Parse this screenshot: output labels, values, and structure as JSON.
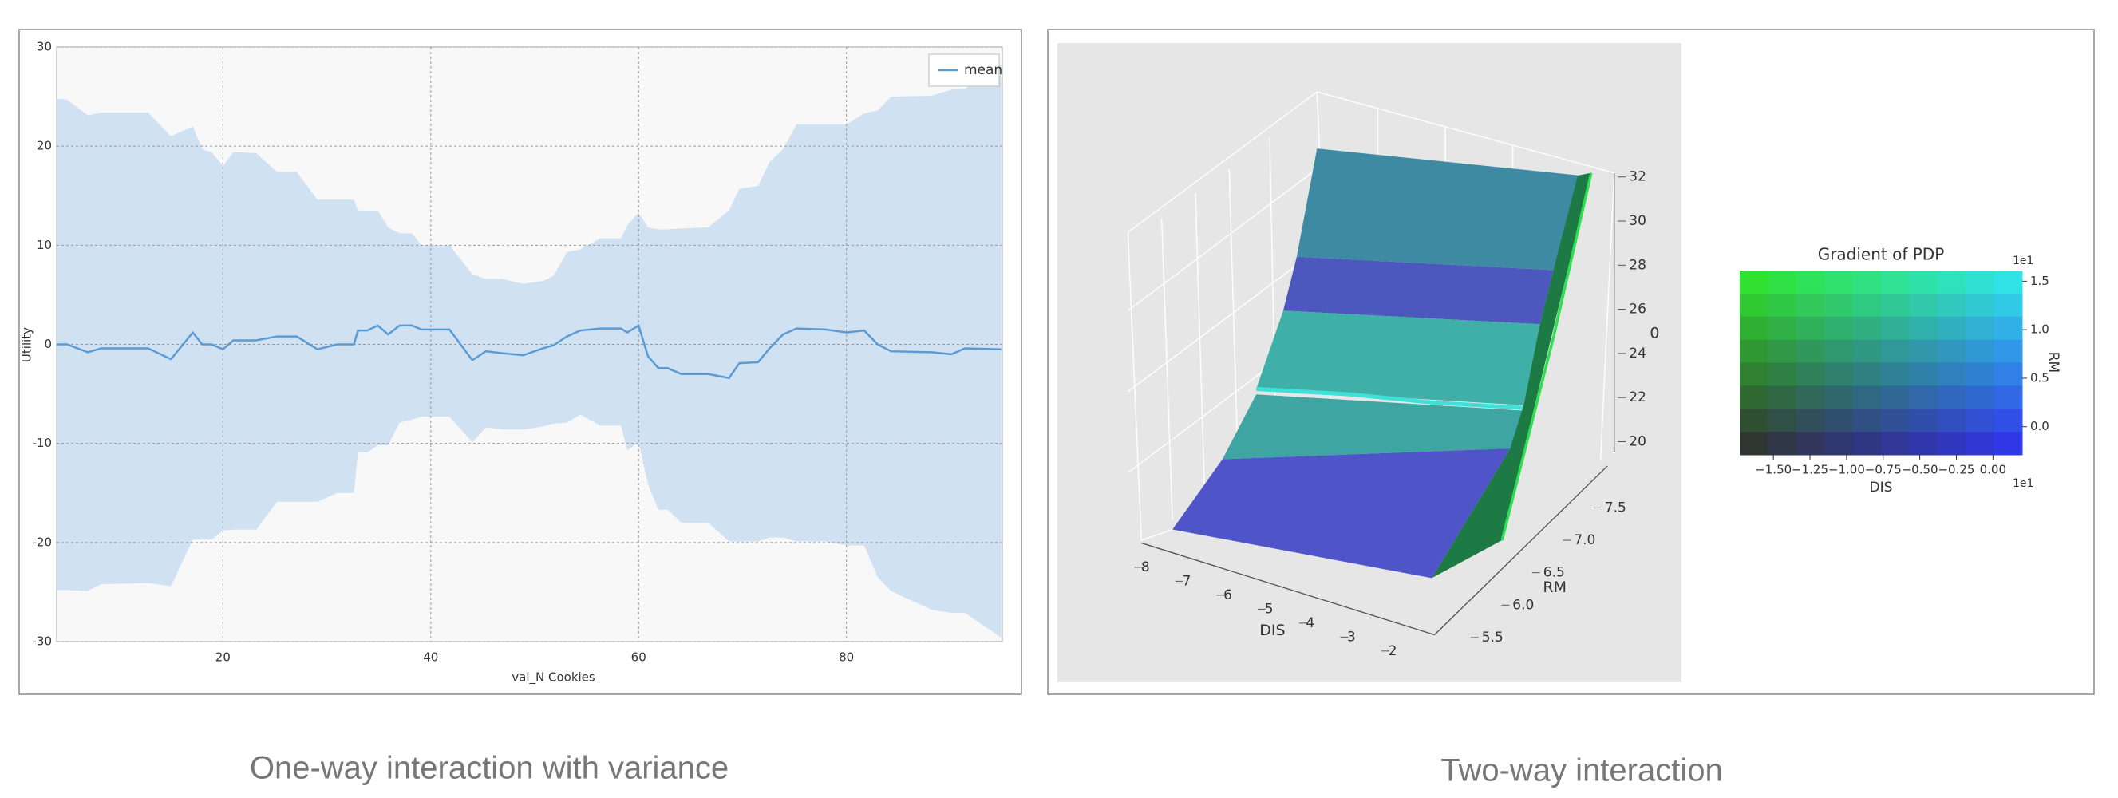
{
  "chart_data": [
    {
      "type": "line",
      "xlabel": "val_N Cookies",
      "ylabel": "Utility",
      "xlim": [
        4,
        95
      ],
      "ylim": [
        -30,
        30
      ],
      "xticks": [
        20,
        40,
        60,
        80
      ],
      "yticks": [
        -30,
        -20,
        -10,
        0,
        10,
        20,
        30
      ],
      "grid": true,
      "legend": "upper right",
      "x": [
        4,
        5,
        7,
        8.3,
        12.8,
        15,
        17.1,
        18,
        18.9,
        20,
        21,
        23.2,
        25.2,
        27.1,
        29.1,
        31,
        32.6,
        33,
        33.9,
        34.9,
        35.9,
        37,
        38.2,
        39.1,
        41.8,
        44,
        45.3,
        46.9,
        48.9,
        50.8,
        51.8,
        53.1,
        54.4,
        56.3,
        58.3,
        58.9,
        60,
        60.9,
        61.9,
        62.8,
        64.1,
        66.7,
        68.7,
        69.7,
        71.5,
        72.6,
        73.9,
        75.2,
        78,
        80,
        81.7,
        83,
        84.3,
        88.2,
        90.1,
        91.4,
        94.9
      ],
      "series": [
        {
          "name": "mean",
          "color": "#5b9bd5",
          "values": [
            0,
            0,
            -0.8,
            -0.4,
            -0.4,
            -1.5,
            1.2,
            0,
            0,
            -0.5,
            0.4,
            0.4,
            0.8,
            0.8,
            -0.5,
            0,
            0,
            1.4,
            1.4,
            1.9,
            1,
            1.9,
            1.9,
            1.5,
            1.5,
            -1.6,
            -0.7,
            -0.9,
            -1.1,
            -0.4,
            -0.1,
            0.8,
            1.4,
            1.6,
            1.6,
            1.2,
            1.9,
            -1.2,
            -2.4,
            -2.4,
            -3,
            -3,
            -3.4,
            -1.9,
            -1.8,
            -0.4,
            1,
            1.6,
            1.5,
            1.2,
            1.4,
            0,
            -0.7,
            -0.8,
            -1,
            -0.4,
            -0.5
          ],
          "band": {
            "color": "#d0e2f1",
            "upper": [
              24.8,
              24.7,
              23.1,
              23.4,
              23.4,
              21,
              22,
              19.7,
              19.4,
              18,
              19.4,
              19.3,
              17.4,
              17.4,
              14.6,
              14.6,
              14.6,
              13.5,
              13.5,
              13.5,
              11.8,
              11.2,
              11.2,
              10,
              10,
              7.1,
              6.6,
              6.6,
              6.1,
              6.4,
              6.9,
              9.3,
              9.6,
              10.7,
              10.7,
              12,
              13.3,
              11.8,
              11.6,
              11.6,
              11.7,
              11.8,
              13.5,
              15.7,
              16,
              18.4,
              19.7,
              22.2,
              22.2,
              22.2,
              23.3,
              23.6,
              25,
              25.1,
              25.7,
              25.8,
              28.2
            ],
            "lower": [
              -24.8,
              -24.8,
              -24.9,
              -24.2,
              -24.1,
              -24.4,
              -19.7,
              -19.7,
              -19.7,
              -18.8,
              -18.7,
              -18.7,
              -15.9,
              -15.9,
              -15.9,
              -15,
              -15,
              -10.9,
              -10.9,
              -10.2,
              -10.2,
              -7.9,
              -7.6,
              -7.3,
              -7.3,
              -9.9,
              -8.4,
              -8.6,
              -8.6,
              -8.3,
              -8,
              -7.9,
              -7.1,
              -8.2,
              -8.2,
              -10.7,
              -9.9,
              -14.1,
              -16.7,
              -16.7,
              -18,
              -18,
              -19.9,
              -19.9,
              -19.9,
              -19.5,
              -19.5,
              -19.9,
              -19.9,
              -20.3,
              -20.3,
              -23.5,
              -24.9,
              -26.8,
              -27.1,
              -27.1,
              -29.6
            ]
          }
        }
      ]
    },
    {
      "type": "surface3d",
      "xlabel": "DIS",
      "ylabel": "RM",
      "zlabel": "0",
      "xticks": [
        8,
        7,
        6,
        5,
        4,
        3,
        2
      ],
      "yticks": [
        7.5,
        {
          "value": 7,
          "label": "7.0"
        },
        6.5,
        {
          "value": 6,
          "label": "6.0"
        },
        5.5
      ],
      "zticks": [
        32,
        30,
        28,
        26,
        24,
        22,
        20
      ]
    },
    {
      "type": "heatmap",
      "title": "Gradient of PDP",
      "xlabel": "DIS",
      "ylabel": "RM",
      "xlim": [
        -1.73,
        0.2
      ],
      "ylim": [
        -0.29,
        1.61
      ],
      "xticks": [
        {
          "value": -1.5,
          "label": "−1.50"
        },
        {
          "value": -1.25,
          "label": "−1.25"
        },
        {
          "value": -1,
          "label": "−1.00"
        },
        {
          "value": -0.75,
          "label": "−0.75"
        },
        {
          "value": -0.5,
          "label": "−0.50"
        },
        {
          "value": -0.25,
          "label": "−0.25"
        },
        {
          "value": 0,
          "label": "0.00"
        }
      ],
      "yticks": [
        1.5,
        {
          "value": 1,
          "label": "1.0"
        },
        0.5,
        {
          "value": 0,
          "label": "0.0"
        }
      ],
      "x_offset": "1e1",
      "y_offset": "1e1"
    }
  ],
  "captions": [
    "One-way interaction with variance",
    "Two-way interaction"
  ]
}
